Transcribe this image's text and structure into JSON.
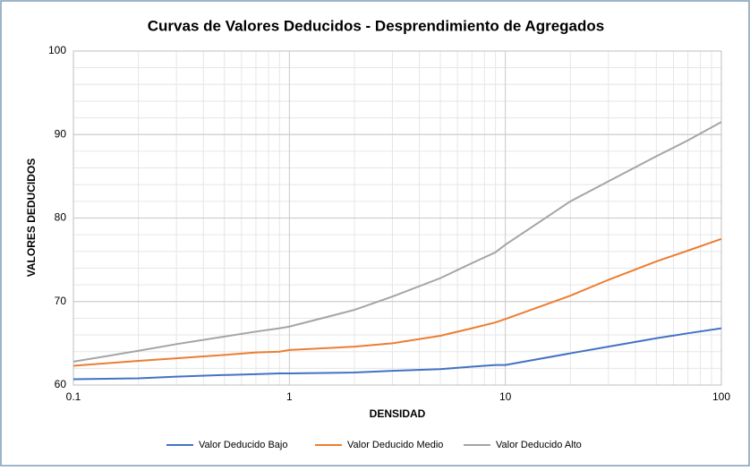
{
  "chart_data": {
    "type": "line",
    "title": "Curvas de Valores Deducidos - Desprendimiento de Agregados",
    "x_label": "DENSIDAD",
    "y_label": "VALORES DEDUCIDOS",
    "x": [
      0.1,
      0.2,
      0.3,
      0.5,
      0.7,
      0.9,
      1,
      2,
      3,
      5,
      7,
      9,
      10,
      20,
      30,
      50,
      70,
      100
    ],
    "series": [
      {
        "name": "Valor Deducido Bajo",
        "color": "#4472c4",
        "values": [
          60.7,
          60.8,
          61.0,
          61.2,
          61.3,
          61.4,
          61.4,
          61.5,
          61.7,
          61.9,
          62.2,
          62.4,
          62.4,
          63.8,
          64.6,
          65.6,
          66.2,
          66.8
        ]
      },
      {
        "name": "Valor Deducido Medio",
        "color": "#ed7d31",
        "values": [
          62.3,
          62.9,
          63.2,
          63.6,
          63.9,
          64.0,
          64.2,
          64.6,
          65.0,
          65.9,
          66.8,
          67.5,
          67.9,
          70.7,
          72.6,
          74.8,
          76.1,
          77.5
        ]
      },
      {
        "name": "Valor Deducido Alto",
        "color": "#a5a5a5",
        "values": [
          62.8,
          64.1,
          64.9,
          65.8,
          66.4,
          66.8,
          67.0,
          69.0,
          70.6,
          72.8,
          74.6,
          75.9,
          76.8,
          82.0,
          84.4,
          87.4,
          89.3,
          91.5
        ]
      }
    ],
    "xlim": [
      0.1,
      100
    ],
    "xticks": [
      0.1,
      1,
      10,
      100
    ],
    "x_log": true,
    "ylim": [
      60,
      100
    ],
    "yticks": [
      60,
      70,
      80,
      90,
      100
    ],
    "grid": true,
    "legend": "bottom"
  }
}
